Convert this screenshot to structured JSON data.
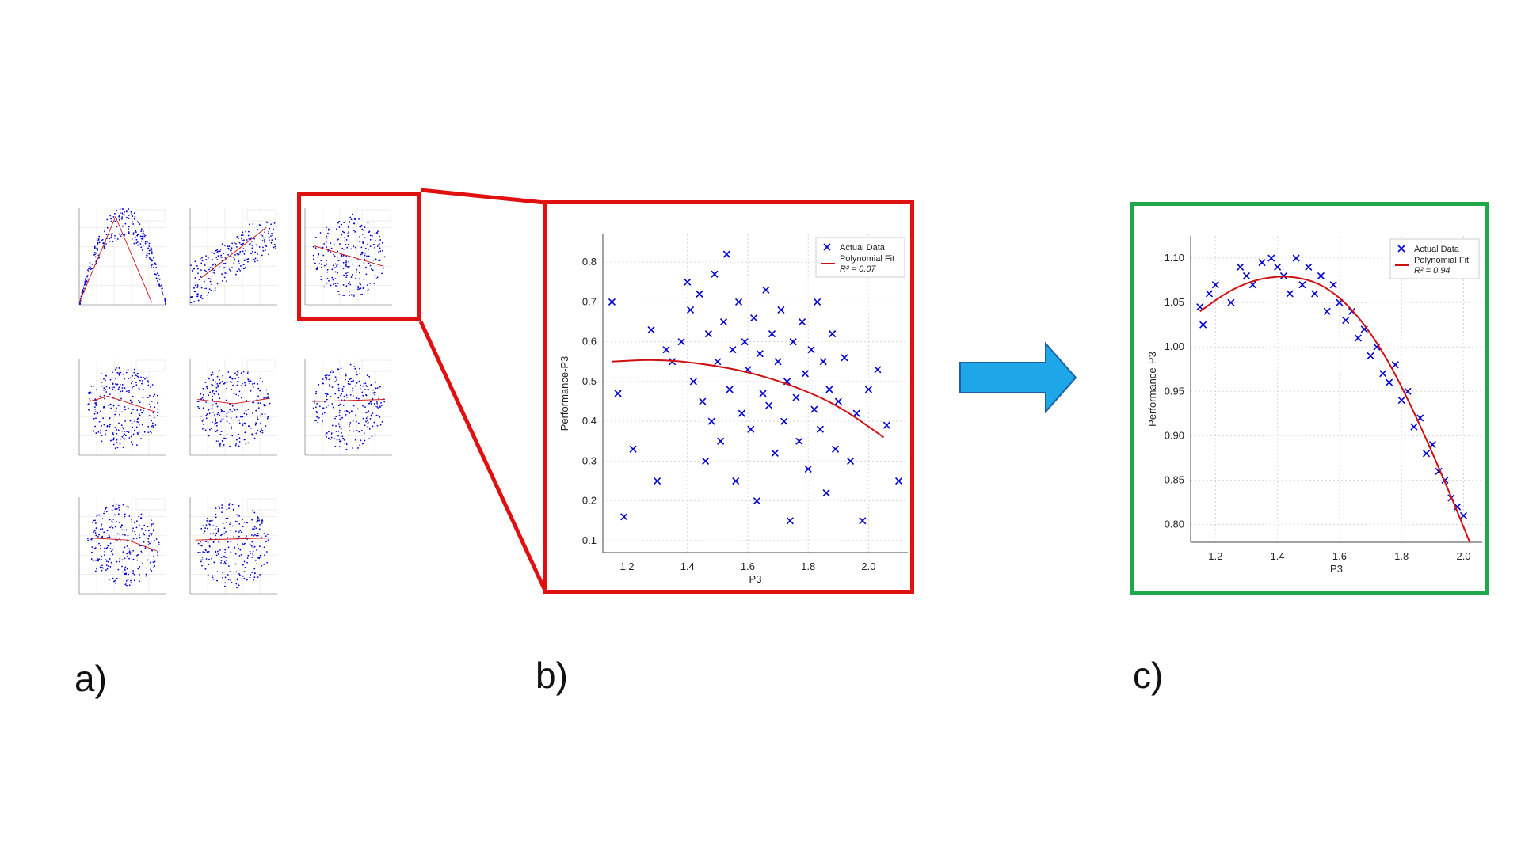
{
  "labels": {
    "a": "a)",
    "b": "b)",
    "c": "c)"
  },
  "colors": {
    "highlight": "#e01010",
    "result": "#1fa84a",
    "points": "#0000d0",
    "fit": "#d01010",
    "arrow": "#1ea7e8"
  },
  "thumbnails": [
    {
      "curve": [
        [
          -0.2,
          0.02
        ],
        [
          0.3,
          0.82
        ],
        [
          0.8,
          0.02
        ]
      ],
      "xlim": [
        -0.2,
        1.0
      ],
      "ylim": [
        0,
        0.9
      ],
      "shape": "parabola"
    },
    {
      "curve": [
        [
          0.2,
          0.25
        ],
        [
          0.8,
          0.72
        ]
      ],
      "xlim": [
        0.1,
        0.9
      ],
      "ylim": [
        0,
        0.9
      ],
      "shape": "rising"
    },
    {
      "curve": [
        [
          1.2,
          0.55
        ],
        [
          2.0,
          0.36
        ]
      ],
      "xlim": [
        1.1,
        2.1
      ],
      "ylim": [
        0,
        0.9
      ],
      "shape": "cloud"
    },
    {
      "curve": [
        [
          1.4,
          0.5
        ],
        [
          1.6,
          0.55
        ],
        [
          2.1,
          0.4
        ]
      ],
      "xlim": [
        1.3,
        2.2
      ],
      "ylim": [
        0,
        0.9
      ],
      "shape": "cloud"
    },
    {
      "curve": [
        [
          0.0,
          0.52
        ],
        [
          0.5,
          0.48
        ],
        [
          1.0,
          0.53
        ]
      ],
      "xlim": [
        -0.1,
        1.1
      ],
      "ylim": [
        0,
        0.9
      ],
      "shape": "cloud"
    },
    {
      "curve": [
        [
          0.0,
          0.5
        ],
        [
          1.0,
          0.52
        ]
      ],
      "xlim": [
        -0.1,
        1.1
      ],
      "ylim": [
        0,
        0.9
      ],
      "shape": "cloud"
    },
    {
      "curve": [
        [
          1.6,
          0.52
        ],
        [
          2.0,
          0.5
        ],
        [
          2.3,
          0.4
        ]
      ],
      "xlim": [
        1.5,
        2.4
      ],
      "ylim": [
        0,
        0.9
      ],
      "shape": "cloud"
    },
    {
      "curve": [
        [
          0.8,
          0.5
        ],
        [
          2.3,
          0.52
        ]
      ],
      "xlim": [
        0.7,
        2.4
      ],
      "ylim": [
        0,
        0.9
      ],
      "shape": "cloud"
    }
  ],
  "chart_data": [
    {
      "type": "scatter",
      "panel": "b",
      "xlabel": "P3",
      "ylabel": "Performance-P3",
      "xlim": [
        1.12,
        2.13
      ],
      "ylim": [
        0.07,
        0.87
      ],
      "xticks": [
        "1.2",
        "1.4",
        "1.6",
        "1.8",
        "2.0"
      ],
      "yticks": [
        "0.1",
        "0.2",
        "0.3",
        "0.4",
        "0.5",
        "0.6",
        "0.7",
        "0.8"
      ],
      "xtick_values": [
        1.2,
        1.4,
        1.6,
        1.8,
        2.0
      ],
      "ytick_values": [
        0.1,
        0.2,
        0.3,
        0.4,
        0.5,
        0.6,
        0.7,
        0.8
      ],
      "grid": true,
      "legend_position": "top-right",
      "legend": [
        "Actual Data",
        "Polynomial Fit",
        "R² = 0.07"
      ],
      "fit_curve": [
        [
          1.15,
          0.55
        ],
        [
          1.3,
          0.556
        ],
        [
          1.45,
          0.545
        ],
        [
          1.6,
          0.525
        ],
        [
          1.75,
          0.49
        ],
        [
          1.9,
          0.44
        ],
        [
          2.05,
          0.36
        ]
      ],
      "points": [
        [
          1.15,
          0.7
        ],
        [
          1.17,
          0.47
        ],
        [
          1.19,
          0.16
        ],
        [
          1.22,
          0.33
        ],
        [
          1.28,
          0.63
        ],
        [
          1.3,
          0.25
        ],
        [
          1.33,
          0.58
        ],
        [
          1.35,
          0.55
        ],
        [
          1.38,
          0.6
        ],
        [
          1.4,
          0.75
        ],
        [
          1.41,
          0.68
        ],
        [
          1.42,
          0.5
        ],
        [
          1.44,
          0.72
        ],
        [
          1.45,
          0.45
        ],
        [
          1.46,
          0.3
        ],
        [
          1.47,
          0.62
        ],
        [
          1.48,
          0.4
        ],
        [
          1.49,
          0.77
        ],
        [
          1.5,
          0.55
        ],
        [
          1.51,
          0.35
        ],
        [
          1.52,
          0.65
        ],
        [
          1.53,
          0.82
        ],
        [
          1.54,
          0.48
        ],
        [
          1.55,
          0.58
        ],
        [
          1.56,
          0.25
        ],
        [
          1.57,
          0.7
        ],
        [
          1.58,
          0.42
        ],
        [
          1.59,
          0.6
        ],
        [
          1.6,
          0.53
        ],
        [
          1.61,
          0.38
        ],
        [
          1.62,
          0.66
        ],
        [
          1.63,
          0.2
        ],
        [
          1.64,
          0.57
        ],
        [
          1.65,
          0.47
        ],
        [
          1.66,
          0.73
        ],
        [
          1.67,
          0.44
        ],
        [
          1.68,
          0.62
        ],
        [
          1.69,
          0.32
        ],
        [
          1.7,
          0.55
        ],
        [
          1.71,
          0.68
        ],
        [
          1.72,
          0.4
        ],
        [
          1.73,
          0.5
        ],
        [
          1.74,
          0.15
        ],
        [
          1.75,
          0.6
        ],
        [
          1.76,
          0.46
        ],
        [
          1.77,
          0.35
        ],
        [
          1.78,
          0.65
        ],
        [
          1.79,
          0.52
        ],
        [
          1.8,
          0.28
        ],
        [
          1.81,
          0.58
        ],
        [
          1.82,
          0.43
        ],
        [
          1.83,
          0.7
        ],
        [
          1.84,
          0.38
        ],
        [
          1.85,
          0.55
        ],
        [
          1.86,
          0.22
        ],
        [
          1.87,
          0.48
        ],
        [
          1.88,
          0.62
        ],
        [
          1.89,
          0.33
        ],
        [
          1.9,
          0.45
        ],
        [
          1.92,
          0.56
        ],
        [
          1.94,
          0.3
        ],
        [
          1.96,
          0.42
        ],
        [
          1.98,
          0.15
        ],
        [
          2.0,
          0.48
        ],
        [
          2.03,
          0.53
        ],
        [
          2.06,
          0.39
        ],
        [
          2.1,
          0.25
        ]
      ]
    },
    {
      "type": "scatter",
      "panel": "c",
      "xlabel": "P3",
      "ylabel": "Performance-P3",
      "xlim": [
        1.12,
        2.06
      ],
      "ylim": [
        0.78,
        1.125
      ],
      "xticks": [
        "1.2",
        "1.4",
        "1.6",
        "1.8",
        "2.0"
      ],
      "yticks": [
        "0.80",
        "0.85",
        "0.90",
        "0.95",
        "1.00",
        "1.05",
        "1.10"
      ],
      "xtick_values": [
        1.2,
        1.4,
        1.6,
        1.8,
        2.0
      ],
      "ytick_values": [
        0.8,
        0.85,
        0.9,
        0.95,
        1.0,
        1.05,
        1.1
      ],
      "grid": true,
      "legend_position": "top-right",
      "legend": [
        "Actual Data",
        "Polynomial Fit",
        "R² = 0.94"
      ],
      "fit_curve": [
        [
          1.15,
          1.04
        ],
        [
          1.25,
          1.065
        ],
        [
          1.35,
          1.078
        ],
        [
          1.45,
          1.08
        ],
        [
          1.55,
          1.07
        ],
        [
          1.65,
          1.04
        ],
        [
          1.75,
          0.99
        ],
        [
          1.85,
          0.92
        ],
        [
          1.95,
          0.84
        ],
        [
          2.02,
          0.78
        ]
      ],
      "points": [
        [
          1.15,
          1.045
        ],
        [
          1.16,
          1.025
        ],
        [
          1.18,
          1.06
        ],
        [
          1.2,
          1.07
        ],
        [
          1.25,
          1.05
        ],
        [
          1.28,
          1.09
        ],
        [
          1.3,
          1.08
        ],
        [
          1.32,
          1.07
        ],
        [
          1.35,
          1.095
        ],
        [
          1.38,
          1.1
        ],
        [
          1.4,
          1.09
        ],
        [
          1.42,
          1.08
        ],
        [
          1.44,
          1.06
        ],
        [
          1.46,
          1.1
        ],
        [
          1.48,
          1.07
        ],
        [
          1.5,
          1.09
        ],
        [
          1.52,
          1.06
        ],
        [
          1.54,
          1.08
        ],
        [
          1.56,
          1.04
        ],
        [
          1.58,
          1.07
        ],
        [
          1.6,
          1.05
        ],
        [
          1.62,
          1.03
        ],
        [
          1.64,
          1.04
        ],
        [
          1.66,
          1.01
        ],
        [
          1.68,
          1.02
        ],
        [
          1.7,
          0.99
        ],
        [
          1.72,
          1.0
        ],
        [
          1.74,
          0.97
        ],
        [
          1.76,
          0.96
        ],
        [
          1.78,
          0.98
        ],
        [
          1.8,
          0.94
        ],
        [
          1.82,
          0.95
        ],
        [
          1.84,
          0.91
        ],
        [
          1.86,
          0.92
        ],
        [
          1.88,
          0.88
        ],
        [
          1.9,
          0.89
        ],
        [
          1.92,
          0.86
        ],
        [
          1.94,
          0.85
        ],
        [
          1.96,
          0.83
        ],
        [
          1.98,
          0.82
        ],
        [
          2.0,
          0.81
        ]
      ]
    }
  ]
}
